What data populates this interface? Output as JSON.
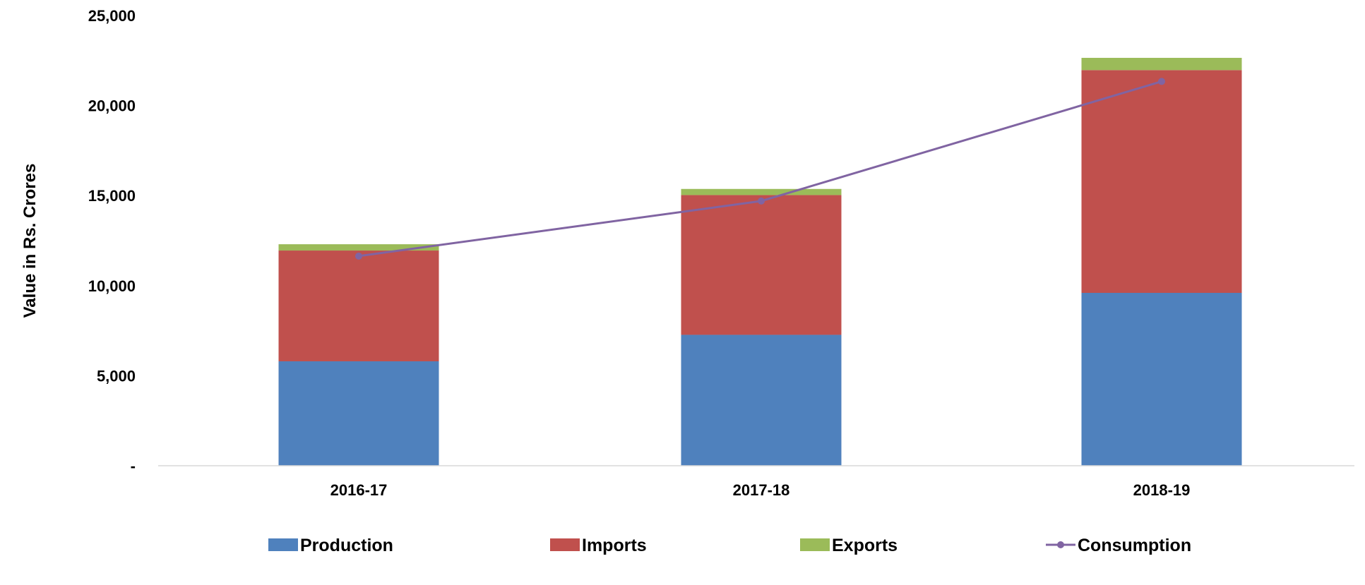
{
  "chart_data": {
    "type": "bar",
    "stacked": true,
    "categories": [
      "2016-17",
      "2017-18",
      "2018-19"
    ],
    "ylabel": "Value in Rs. Crores",
    "xlabel": "",
    "ylim": [
      0,
      25000
    ],
    "yticks": [
      0,
      5000,
      10000,
      15000,
      20000,
      25000
    ],
    "ytick_labels": [
      "-",
      "5,000",
      "10,000",
      "15,000",
      "20,000",
      "25,000"
    ],
    "grid": false,
    "legend_position": "bottom",
    "series": [
      {
        "name": "Production",
        "kind": "bar",
        "color": "#4F81BD",
        "values": [
          5800,
          7270,
          9600
        ]
      },
      {
        "name": "Imports",
        "kind": "bar",
        "color": "#C0504D",
        "values": [
          6150,
          7760,
          12370
        ]
      },
      {
        "name": "Exports",
        "kind": "bar",
        "color": "#9BBB59",
        "values": [
          350,
          340,
          680
        ]
      },
      {
        "name": "Consumption",
        "kind": "line",
        "color": "#8064A2",
        "values": [
          11640,
          14700,
          21340
        ]
      }
    ]
  }
}
